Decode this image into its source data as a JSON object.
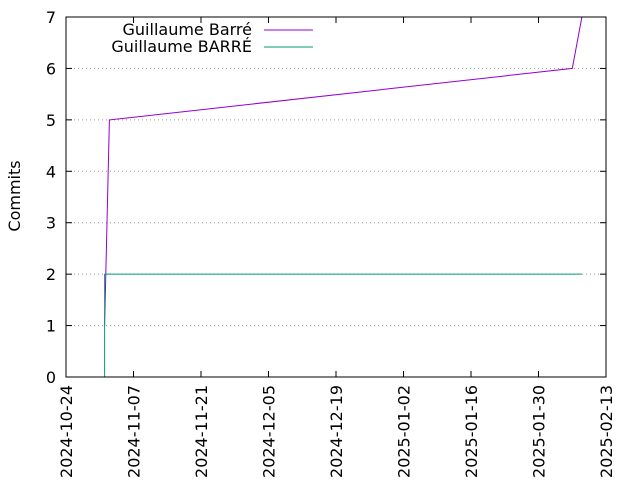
{
  "chart_data": {
    "type": "line",
    "title": "",
    "xlabel": "",
    "ylabel": "Commits",
    "x_type": "date",
    "xlim": [
      "2024-10-24",
      "2025-02-13"
    ],
    "ylim": [
      0,
      7
    ],
    "x_ticks": [
      "2024-10-24",
      "2024-11-07",
      "2024-11-21",
      "2024-12-05",
      "2024-12-19",
      "2025-01-02",
      "2025-01-16",
      "2025-01-30",
      "2025-02-13"
    ],
    "y_ticks": [
      0,
      1,
      2,
      3,
      4,
      5,
      6,
      7
    ],
    "grid": "horizontal dotted",
    "legend_position": "top-left",
    "series": [
      {
        "name": "Guillaume Barré",
        "color": "#9400d3",
        "points": [
          {
            "x": "2024-11-01",
            "y": 1
          },
          {
            "x": "2024-11-02",
            "y": 5
          },
          {
            "x": "2025-02-06",
            "y": 6
          },
          {
            "x": "2025-02-08",
            "y": 7
          }
        ]
      },
      {
        "name": "Guillaume BARRÉ",
        "color": "#009e73",
        "points": [
          {
            "x": "2024-11-01",
            "y": 0
          },
          {
            "x": "2024-11-01",
            "y": 2
          },
          {
            "x": "2025-02-08",
            "y": 2
          }
        ]
      }
    ]
  }
}
